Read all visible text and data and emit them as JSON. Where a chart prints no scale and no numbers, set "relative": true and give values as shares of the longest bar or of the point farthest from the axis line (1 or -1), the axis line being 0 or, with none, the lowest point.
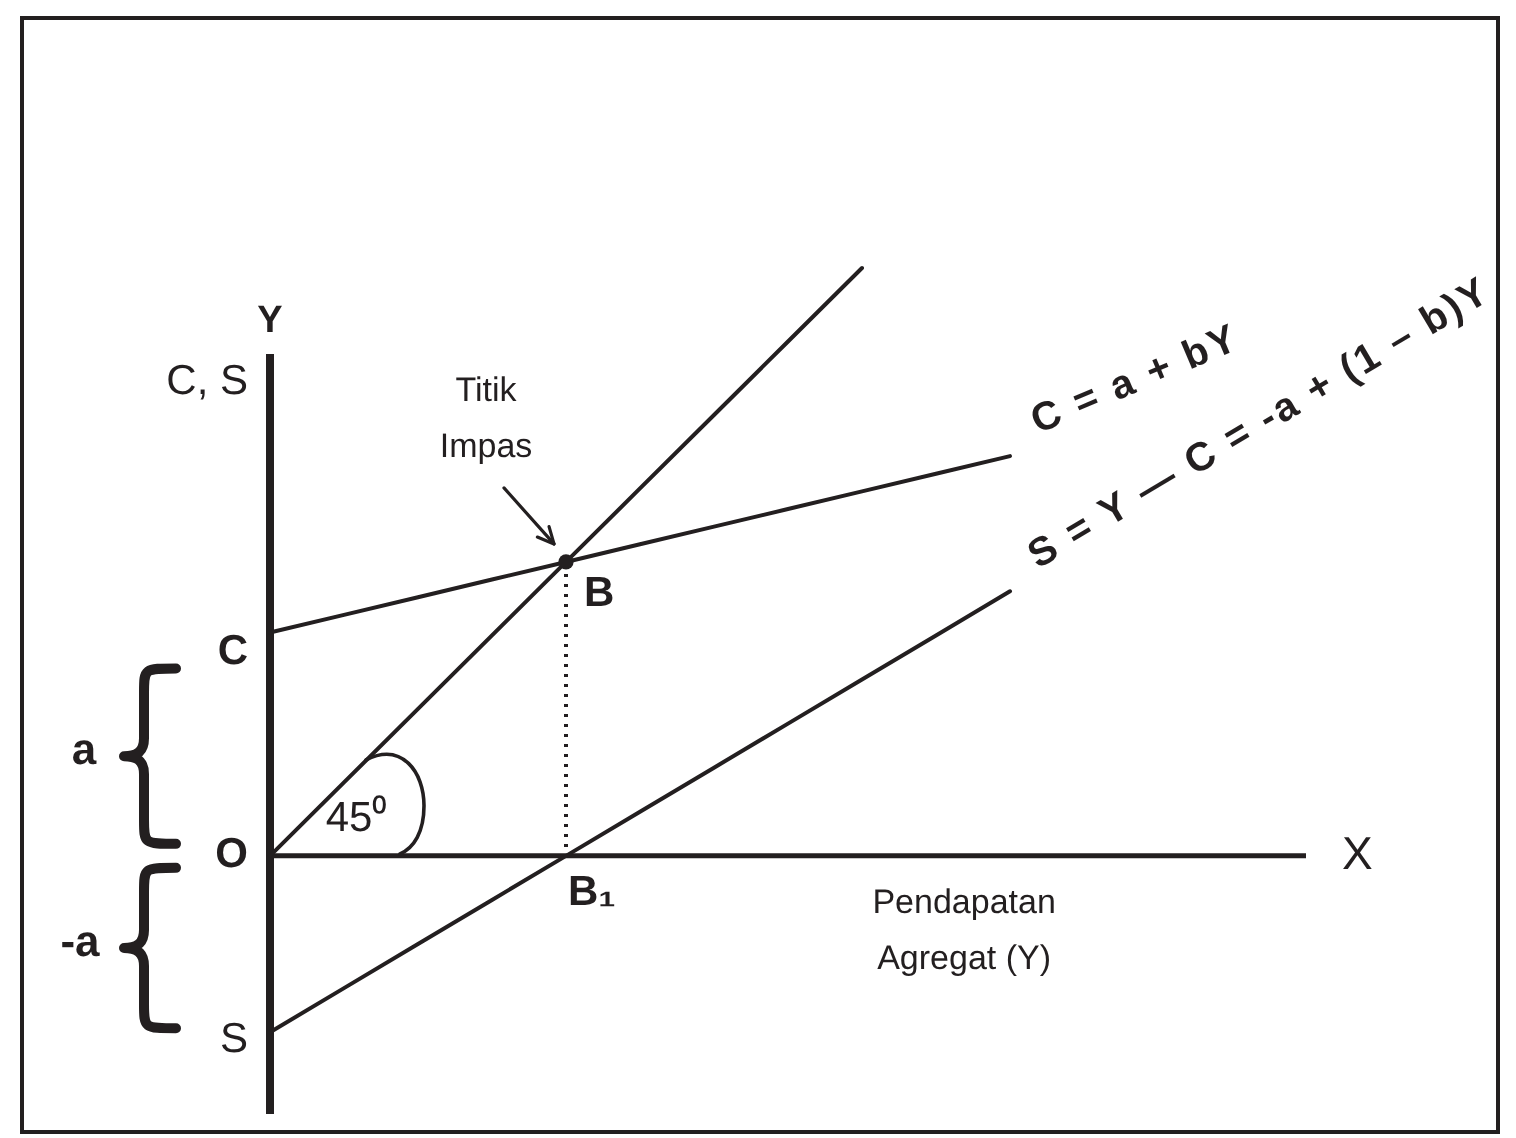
{
  "chart_data": {
    "type": "line",
    "relative": true,
    "marker": "none",
    "xlabel": "Pendapatan Agregat (Y)",
    "ylabel": "C, S",
    "categories": [
      null,
      null,
      null,
      null,
      null,
      null,
      null,
      null,
      null,
      null,
      null,
      null,
      null,
      null,
      null
    ],
    "series": [
      {
        "color": "#231f20",
        "values": [
          0,
          0.125,
          0.25,
          0.375,
          0.5,
          0.625,
          0.75,
          0.875,
          1,
          null,
          null,
          null,
          null,
          null,
          null
        ]
      },
      {
        "name": "C = a + bY",
        "color": "#231f20",
        "values": [
          0.38,
          0.41,
          0.44,
          0.47,
          0.5,
          0.53,
          0.56,
          0.59,
          0.62,
          0.65,
          0.68,
          null,
          null,
          null,
          null
        ]
      },
      {
        "name": "S = Y — C = -a + (1 – b)Y",
        "color": "#231f20",
        "values": [
          -0.3,
          -0.225,
          -0.15,
          -0.075,
          0,
          0.075,
          0.15,
          0.225,
          0.3,
          0.375,
          0.45,
          null,
          null,
          null,
          null
        ]
      },
      {
        "name": "B",
        "color": "#231f20",
        "marker": "circle",
        "values": [
          null,
          null,
          null,
          null,
          0.5,
          null,
          null,
          null,
          null,
          null,
          null,
          null,
          null,
          null,
          null
        ]
      }
    ],
    "annotations": [
      "Y",
      "X",
      "Titik Impas",
      "C",
      "O",
      "S",
      "a",
      "-a",
      "45⁰",
      "B₁"
    ]
  }
}
